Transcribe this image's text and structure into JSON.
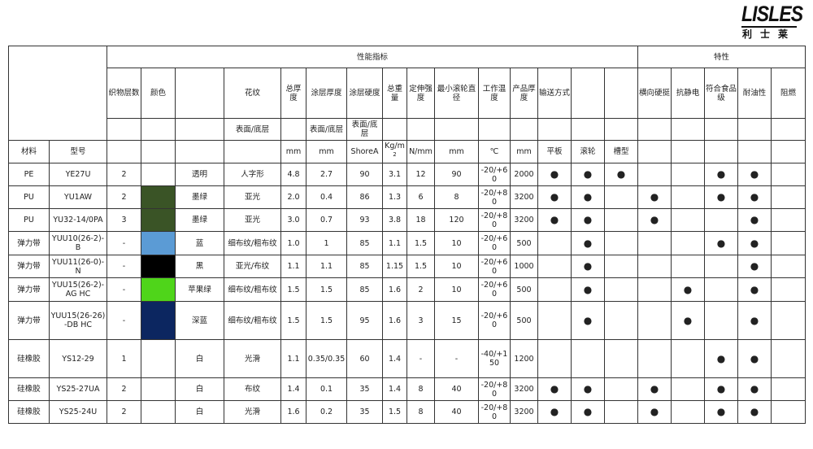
{
  "logo": {
    "word": "LISLES",
    "chinese": "利士莱"
  },
  "header": {
    "group_performance": "性能指标",
    "group_features": "特性",
    "columns": [
      "织物层数",
      "颜色",
      "",
      "花纹",
      "总厚度",
      "涂层厚度",
      "涂层硬度",
      "总重量",
      "定伸强度",
      "最小滚轮直径",
      "工作温度",
      "产品厚度",
      "输送方式",
      "",
      "",
      "横向硬挺",
      "抗静电",
      "符合食品级",
      "耐油性",
      "阻燃"
    ],
    "subheader": [
      "",
      "",
      "",
      "表面/底层",
      "",
      "表面/底层",
      "表面/底层",
      "",
      "",
      "",
      "",
      "",
      "",
      "",
      "",
      "",
      "",
      "",
      "",
      ""
    ],
    "units": [
      "材料",
      "型号",
      "",
      "",
      "",
      "",
      "mm",
      "mm",
      "ShoreA",
      "Kg/m²",
      "N/mm",
      "mm",
      "℃",
      "mm",
      "平板",
      "滚轮",
      "槽型",
      "",
      "",
      "",
      "",
      ""
    ]
  },
  "rows": [
    {
      "material": "PE",
      "model": "YE27U",
      "layers": "2",
      "swatch": "",
      "color": "透明",
      "pattern": "人字形",
      "total": "4.8",
      "coat": "2.7",
      "hard": "90",
      "weight": "3.1",
      "tensile": "12",
      "roller": "90",
      "temp": "-20/+60",
      "prod": "2000",
      "dots": [
        1,
        1,
        1,
        0,
        0,
        1,
        1,
        0
      ]
    },
    {
      "material": "PU",
      "model": "YU1AW",
      "layers": "2",
      "swatch": "#3a5426",
      "color": "墨绿",
      "pattern": "亚光",
      "total": "2.0",
      "coat": "0.4",
      "hard": "86",
      "weight": "1.3",
      "tensile": "6",
      "roller": "8",
      "temp": "-20/+80",
      "prod": "3200",
      "dots": [
        1,
        1,
        0,
        1,
        0,
        1,
        1,
        0
      ]
    },
    {
      "material": "PU",
      "model": "YU32-14/0PA",
      "layers": "3",
      "swatch": "#3a5426",
      "color": "墨绿",
      "pattern": "亚光",
      "total": "3.0",
      "coat": "0.7",
      "hard": "93",
      "weight": "3.8",
      "tensile": "18",
      "roller": "120",
      "temp": "-20/+80",
      "prod": "3200",
      "dots": [
        1,
        1,
        0,
        1,
        0,
        0,
        1,
        0
      ]
    },
    {
      "material": "弹力带",
      "model": "YUU10(26-2)-B",
      "layers": "-",
      "swatch": "#5b9bd5",
      "color": "蓝",
      "pattern": "细布纹/粗布纹",
      "total": "1.0",
      "coat": "1",
      "hard": "85",
      "weight": "1.1",
      "tensile": "1.5",
      "roller": "10",
      "temp": "-20/+60",
      "prod": "500",
      "dots": [
        0,
        1,
        0,
        0,
        0,
        1,
        1,
        0
      ]
    },
    {
      "material": "弹力带",
      "model": "YUU11(26-0)-N",
      "layers": "-",
      "swatch": "#000000",
      "color": "黑",
      "pattern": "亚光/布纹",
      "total": "1.1",
      "coat": "1.1",
      "hard": "85",
      "weight": "1.15",
      "tensile": "1.5",
      "roller": "10",
      "temp": "-20/+60",
      "prod": "1000",
      "dots": [
        0,
        1,
        0,
        0,
        0,
        0,
        1,
        0
      ]
    },
    {
      "material": "弹力带",
      "model": "YUU15(26-2)-AG HC",
      "layers": "-",
      "swatch": "#4fd51a",
      "color": "苹果绿",
      "pattern": "细布纹/粗布纹",
      "total": "1.5",
      "coat": "1.5",
      "hard": "85",
      "weight": "1.6",
      "tensile": "2",
      "roller": "10",
      "temp": "-20/+60",
      "prod": "500",
      "dots": [
        0,
        1,
        0,
        0,
        1,
        0,
        1,
        0
      ]
    },
    {
      "material": "弹力带",
      "model": "YUU15(26-26)-DB HC",
      "layers": "-",
      "swatch": "#0c2660",
      "color": "深蓝",
      "pattern": "细布纹/粗布纹",
      "total": "1.5",
      "coat": "1.5",
      "hard": "95",
      "weight": "1.6",
      "tensile": "3",
      "roller": "15",
      "temp": "-20/+60",
      "prod": "500",
      "dots": [
        0,
        1,
        0,
        0,
        1,
        0,
        1,
        0
      ]
    },
    {
      "material": "硅橡胶",
      "model": "YS12-29",
      "layers": "1",
      "swatch": "",
      "color": "白",
      "pattern": "光滑",
      "total": "1.1",
      "coat": "0.35/0.35",
      "hard": "60",
      "weight": "1.4",
      "tensile": "-",
      "roller": "-",
      "temp": "-40/+150",
      "prod": "1200",
      "dots": [
        0,
        0,
        0,
        0,
        0,
        1,
        1,
        0
      ]
    },
    {
      "material": "硅橡胶",
      "model": "YS25-27UA",
      "layers": "2",
      "swatch": "",
      "color": "白",
      "pattern": "布纹",
      "total": "1.4",
      "coat": "0.1",
      "hard": "35",
      "weight": "1.4",
      "tensile": "8",
      "roller": "40",
      "temp": "-20/+80",
      "prod": "3200",
      "dots": [
        1,
        1,
        0,
        1,
        0,
        1,
        1,
        0
      ]
    },
    {
      "material": "硅橡胶",
      "model": "YS25-24U",
      "layers": "2",
      "swatch": "",
      "color": "白",
      "pattern": "光滑",
      "total": "1.6",
      "coat": "0.2",
      "hard": "35",
      "weight": "1.5",
      "tensile": "8",
      "roller": "40",
      "temp": "-20/+80",
      "prod": "3200",
      "dots": [
        1,
        1,
        0,
        1,
        0,
        1,
        1,
        0
      ]
    }
  ],
  "dot_symbol": "●"
}
